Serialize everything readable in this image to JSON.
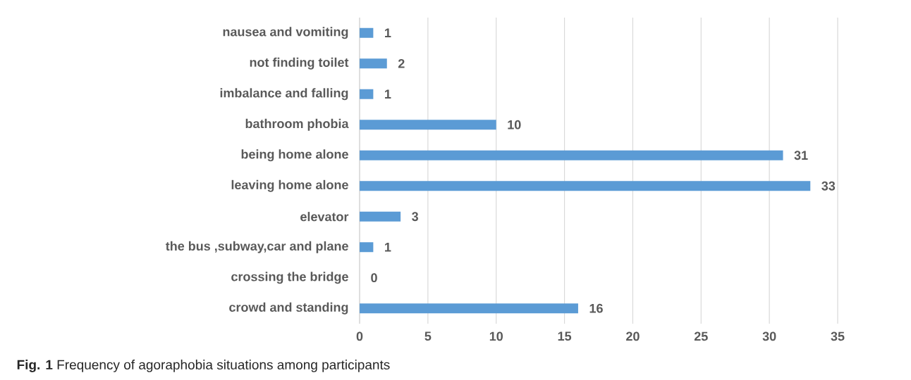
{
  "chart_data": {
    "type": "bar",
    "orientation": "horizontal",
    "categories": [
      "nausea and vomiting",
      "not finding toilet",
      "imbalance and falling",
      "bathroom phobia",
      "being home alone",
      "leaving home alone",
      "elevator",
      "the bus ,subway,car and plane",
      "crossing the bridge",
      "crowd and standing"
    ],
    "values": [
      1,
      2,
      1,
      10,
      31,
      33,
      3,
      1,
      0,
      16
    ],
    "color": "#5b9bd5",
    "xlim": [
      0,
      35
    ],
    "xticks": [
      0,
      5,
      10,
      15,
      20,
      25,
      30,
      35
    ],
    "grid": "x",
    "data_labels": true,
    "annotations": [
      "**Fig. 1** Frequency of agoraphobia situations among participants"
    ]
  }
}
